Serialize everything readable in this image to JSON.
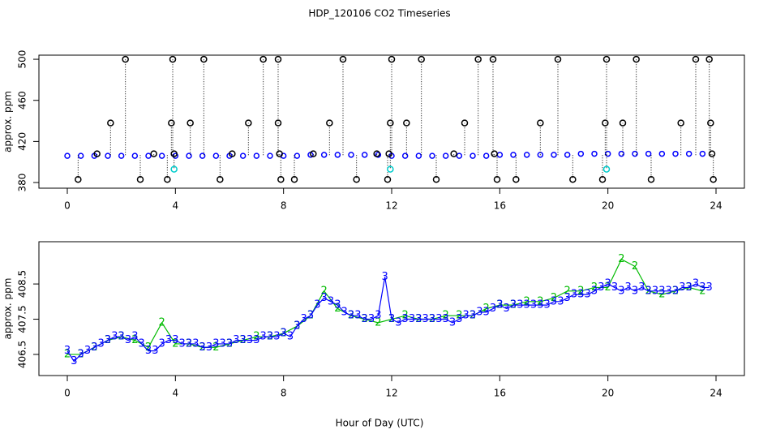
{
  "title": "HDP_120106  CO2 Timeseries",
  "xlabel": "Hour of Day (UTC)",
  "chart_data": [
    {
      "type": "scatter",
      "ylabel": "approx. ppm",
      "xlim": [
        -1.05,
        25.05
      ],
      "ylim": [
        374.5,
        504
      ],
      "xticks": [
        0,
        4,
        8,
        12,
        16,
        20,
        24
      ],
      "yticks": [
        380,
        420,
        460,
        500
      ],
      "drop_lines": true,
      "series": [
        {
          "color": "#0000ff",
          "marker": "circle",
          "x": [
            0,
            0.5,
            1,
            1.5,
            2,
            2.5,
            3,
            3.5,
            4,
            4.5,
            5,
            5.5,
            6,
            6.5,
            7,
            7.5,
            8,
            8.5,
            9,
            9.5,
            10,
            10.5,
            11,
            11.5,
            12,
            12.5,
            13,
            13.5,
            14,
            14.5,
            15,
            15.5,
            16,
            16.5,
            17,
            17.5,
            18,
            18.5,
            19,
            19.5,
            20,
            20.5,
            21,
            21.5,
            22,
            22.5,
            23,
            23.5
          ],
          "values": [
            406,
            406,
            406,
            406,
            406,
            406,
            406,
            406,
            406,
            406,
            406,
            406,
            406,
            406,
            406,
            406,
            406,
            406,
            407,
            407,
            407,
            407,
            407,
            407,
            406,
            406,
            406,
            406,
            406,
            406,
            406,
            406,
            407,
            407,
            407,
            407,
            407,
            407,
            408,
            408,
            408,
            408,
            408,
            408,
            408,
            408,
            408,
            408
          ]
        },
        {
          "color": "#000000",
          "marker": "circle",
          "x": [
            0.4,
            1.1,
            1.6,
            2.15,
            2.7,
            3.2,
            3.7,
            3.85,
            3.9,
            3.95,
            4.55,
            5.05,
            5.65,
            6.1,
            6.7,
            7.25,
            7.8,
            7.8,
            7.85,
            7.9,
            8.4,
            9.1,
            9.7,
            10.2,
            10.7,
            11.45,
            11.85,
            11.9,
            11.95,
            12.0,
            12.55,
            13.1,
            13.65,
            14.3,
            14.7,
            15.2,
            15.75,
            15.8,
            15.9,
            16.6,
            17.5,
            18.15,
            18.7,
            19.8,
            19.9,
            19.95,
            20.55,
            21.05,
            21.6,
            22.7,
            23.25,
            23.75,
            23.8,
            23.85,
            23.9
          ],
          "values": [
            383,
            408,
            438,
            500,
            383,
            408,
            383,
            438,
            500,
            408,
            438,
            500,
            383,
            408,
            438,
            500,
            500,
            438,
            408,
            383,
            383,
            408,
            438,
            500,
            383,
            408,
            383,
            408,
            438,
            500,
            438,
            500,
            383,
            408,
            438,
            500,
            500,
            408,
            383,
            383,
            438,
            500,
            383,
            383,
            438,
            500,
            438,
            500,
            383,
            438,
            500,
            500,
            438,
            408,
            383
          ]
        },
        {
          "color": "#00cccc",
          "marker": "circle",
          "x": [
            3.95,
            11.95,
            19.95
          ],
          "values": [
            393,
            393,
            393
          ]
        }
      ]
    },
    {
      "type": "line",
      "ylabel": "approx. ppm",
      "xlim": [
        -1.05,
        25.05
      ],
      "ylim": [
        405.9,
        409.7
      ],
      "xticks": [
        0,
        4,
        8,
        12,
        16,
        20,
        24
      ],
      "yticks": [
        406.5,
        407.5,
        408.5
      ],
      "series": [
        {
          "color": "#00bb00",
          "marker": "2",
          "x": [
            0,
            0.5,
            1,
            1.5,
            2,
            2.5,
            3,
            3.5,
            4,
            4.5,
            5,
            5.5,
            6,
            6.5,
            7,
            7.5,
            8,
            8.5,
            9,
            9.5,
            10,
            10.5,
            11,
            11.5,
            12,
            12.5,
            13,
            13.5,
            14,
            14.5,
            15,
            15.5,
            16,
            16.5,
            17,
            17.5,
            18,
            18.5,
            19,
            19.5,
            20,
            20.5,
            21,
            21.5,
            22,
            22.5,
            23,
            23.5
          ],
          "values": [
            406.5,
            406.5,
            406.7,
            406.9,
            407.0,
            406.9,
            406.7,
            407.4,
            406.8,
            406.8,
            406.7,
            406.7,
            406.8,
            406.9,
            407.0,
            407.0,
            407.1,
            407.3,
            407.6,
            408.3,
            407.8,
            407.6,
            407.5,
            407.4,
            407.5,
            407.6,
            407.5,
            407.5,
            407.6,
            407.6,
            407.6,
            407.8,
            407.9,
            407.9,
            408.0,
            408.0,
            408.1,
            408.3,
            408.3,
            408.4,
            408.4,
            409.2,
            409.0,
            408.3,
            408.2,
            408.3,
            408.4,
            408.3
          ]
        },
        {
          "color": "#0000ff",
          "marker": "3",
          "x": [
            0,
            0.25,
            0.5,
            0.75,
            1,
            1.25,
            1.5,
            1.75,
            2,
            2.25,
            2.5,
            2.75,
            3,
            3.25,
            3.5,
            3.75,
            4,
            4.25,
            4.5,
            4.75,
            5,
            5.25,
            5.5,
            5.75,
            6,
            6.25,
            6.5,
            6.75,
            7,
            7.25,
            7.5,
            7.75,
            8,
            8.25,
            8.5,
            8.75,
            9,
            9.25,
            9.5,
            9.75,
            10,
            10.25,
            10.5,
            10.75,
            11,
            11.25,
            11.5,
            11.75,
            12,
            12.25,
            12.5,
            12.75,
            13,
            13.25,
            13.5,
            13.75,
            14,
            14.25,
            14.5,
            14.75,
            15,
            15.25,
            15.5,
            15.75,
            16,
            16.25,
            16.5,
            16.75,
            17,
            17.25,
            17.5,
            17.75,
            18,
            18.25,
            18.5,
            18.75,
            19,
            19.25,
            19.5,
            19.75,
            20,
            20.25,
            20.5,
            20.75,
            21,
            21.25,
            21.5,
            21.75,
            22,
            22.25,
            22.5,
            22.75,
            23,
            23.25,
            23.5,
            23.75
          ],
          "values": [
            406.6,
            406.3,
            406.5,
            406.6,
            406.7,
            406.8,
            406.9,
            407.0,
            407.0,
            406.9,
            407.0,
            406.8,
            406.6,
            406.6,
            406.8,
            406.9,
            406.9,
            406.8,
            406.8,
            406.8,
            406.7,
            406.7,
            406.8,
            406.8,
            406.8,
            406.9,
            406.9,
            406.9,
            406.9,
            407.0,
            407.0,
            407.0,
            407.1,
            407.0,
            407.3,
            407.5,
            407.6,
            407.9,
            408.1,
            408.0,
            407.9,
            407.7,
            407.6,
            407.6,
            407.5,
            407.5,
            407.6,
            408.7,
            407.5,
            407.4,
            407.5,
            407.5,
            407.5,
            407.5,
            407.5,
            407.5,
            407.5,
            407.4,
            407.5,
            407.6,
            407.6,
            407.7,
            407.7,
            407.8,
            407.9,
            407.8,
            407.9,
            407.9,
            407.9,
            407.9,
            407.9,
            407.9,
            408.0,
            408.0,
            408.1,
            408.2,
            408.2,
            408.2,
            408.3,
            408.4,
            408.5,
            408.4,
            408.3,
            408.4,
            408.3,
            408.4,
            408.3,
            408.3,
            408.3,
            408.3,
            408.3,
            408.4,
            408.4,
            408.5,
            408.4,
            408.4
          ]
        }
      ]
    }
  ]
}
